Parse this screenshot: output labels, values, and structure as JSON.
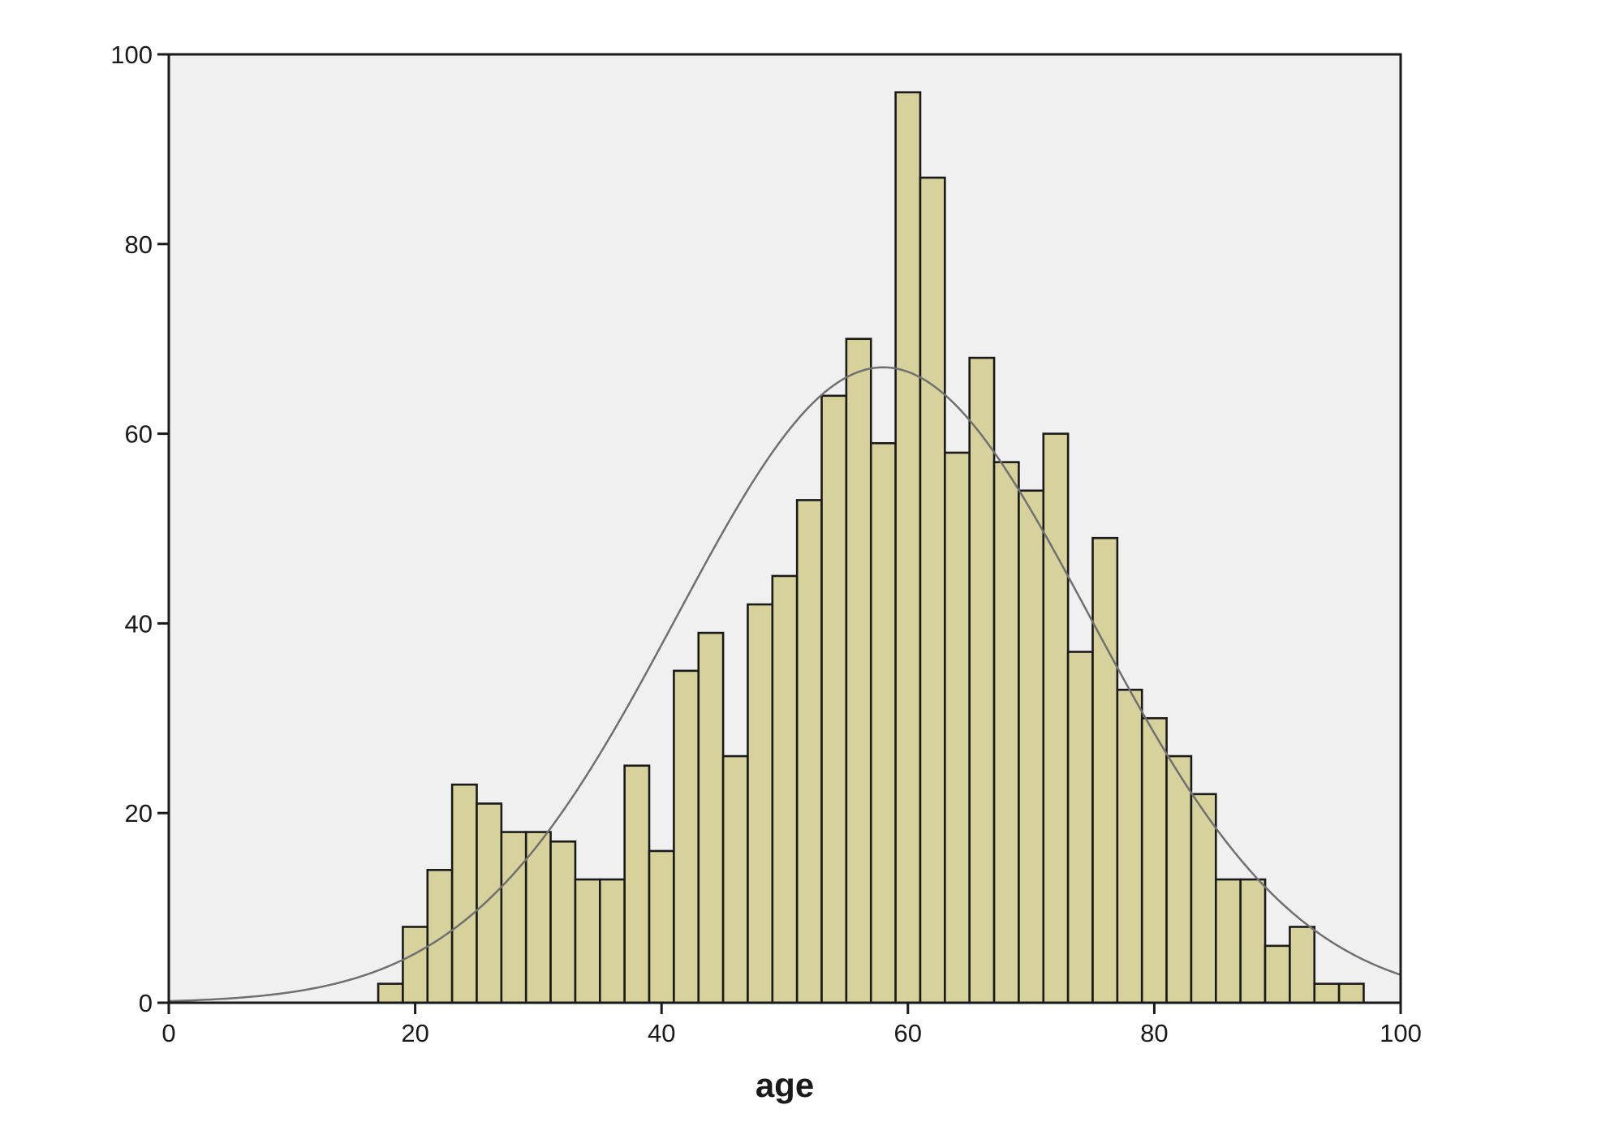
{
  "chart_data": {
    "type": "bar",
    "subtype": "histogram-with-normal-curve",
    "title": "",
    "xlabel": "age",
    "ylabel": "",
    "xlim": [
      0,
      100
    ],
    "ylim": [
      0,
      100
    ],
    "xticks": [
      0,
      20,
      40,
      60,
      80,
      100
    ],
    "yticks": [
      0,
      20,
      40,
      60,
      80,
      100
    ],
    "grid": false,
    "legend": "none",
    "colors": {
      "plot_background": "#f0f0f0",
      "bar_fill": "#d7d29c",
      "bar_stroke": "#1a1a1a",
      "curve": "#707070",
      "axis": "#1a1a1a"
    },
    "bin_start": 17,
    "bin_width": 2,
    "bin_counts": [
      2,
      8,
      14,
      23,
      21,
      18,
      18,
      17,
      13,
      13,
      25,
      16,
      35,
      39,
      26,
      42,
      45,
      53,
      64,
      70,
      59,
      96,
      87,
      58,
      68,
      57,
      54,
      60,
      37,
      49,
      33,
      30,
      26,
      22,
      13,
      13,
      6,
      8,
      2,
      2
    ],
    "normal_curve": {
      "mean": 58,
      "std_dev": 16.8,
      "peak_count": 67
    }
  }
}
